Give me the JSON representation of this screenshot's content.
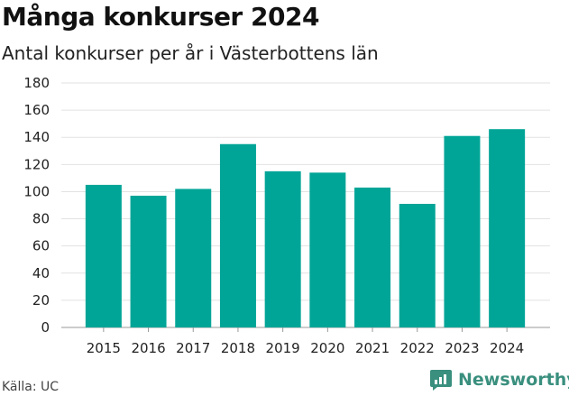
{
  "header": {
    "title": "Många konkurser 2024",
    "subtitle": "Antal konkurser per år i Västerbottens län"
  },
  "footer": {
    "source": "Källa: UC",
    "brand": "Newsworthy",
    "brand_icon": "newsworthy-logo-icon"
  },
  "colors": {
    "bar": "#00a597",
    "grid": "#e2e2e2",
    "brand": "#3a8f7e"
  },
  "chart_data": {
    "type": "bar",
    "title": "Många konkurser 2024",
    "subtitle": "Antal konkurser per år i Västerbottens län",
    "xlabel": "",
    "ylabel": "",
    "categories": [
      "2015",
      "2016",
      "2017",
      "2018",
      "2019",
      "2020",
      "2021",
      "2022",
      "2023",
      "2024"
    ],
    "values": [
      105,
      97,
      102,
      135,
      115,
      114,
      103,
      91,
      141,
      146
    ],
    "ylim": [
      0,
      180
    ],
    "yticks": [
      0,
      20,
      40,
      60,
      80,
      100,
      120,
      140,
      160,
      180
    ],
    "grid": true,
    "legend": "none"
  }
}
